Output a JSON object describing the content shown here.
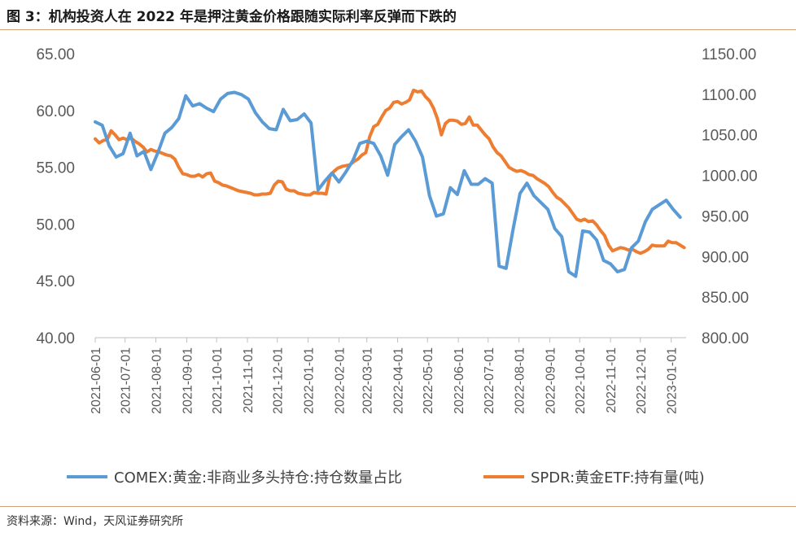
{
  "header": {
    "title": "图 3：机构投资人在 2022 年是押注黄金价格跟随实际利率反弹而下跌的"
  },
  "footer": {
    "source": "资料来源：Wind，天风证券研究所"
  },
  "colors": {
    "series1": "#5b9bd5",
    "series2": "#ed7d31",
    "axis": "#bfbfbf",
    "rule": "#d2a178"
  },
  "chart_data": {
    "type": "line",
    "title": "",
    "grid": false,
    "legend_position": "bottom",
    "x_ticks": [
      "2021-06-01",
      "2021-07-01",
      "2021-08-01",
      "2021-09-01",
      "2021-10-01",
      "2021-11-01",
      "2021-12-01",
      "2022-01-01",
      "2022-02-01",
      "2022-03-01",
      "2022-04-01",
      "2022-05-01",
      "2022-06-01",
      "2022-07-01",
      "2022-08-01",
      "2022-09-01",
      "2022-10-01",
      "2022-11-01",
      "2022-12-01",
      "2023-01-01"
    ],
    "y_left": {
      "min": 40,
      "max": 65,
      "ticks": [
        "40.00",
        "45.00",
        "50.00",
        "55.00",
        "60.00",
        "65.00"
      ]
    },
    "y_right": {
      "min": 800,
      "max": 1150,
      "ticks": [
        "800.00",
        "850.00",
        "900.00",
        "950.00",
        "1000.00",
        "1050.00",
        "1100.00",
        "1150.00"
      ]
    },
    "series": [
      {
        "name": "COMEX:黄金:非商业多头持仓:持仓数量占比",
        "axis": "left",
        "points": [
          [
            "2021-06-01",
            59.0
          ],
          [
            "2021-06-08",
            58.7
          ],
          [
            "2021-06-15",
            56.9
          ],
          [
            "2021-06-22",
            55.9
          ],
          [
            "2021-06-29",
            56.2
          ],
          [
            "2021-07-06",
            58.0
          ],
          [
            "2021-07-13",
            56.0
          ],
          [
            "2021-07-20",
            56.4
          ],
          [
            "2021-07-27",
            54.8
          ],
          [
            "2021-08-03",
            56.3
          ],
          [
            "2021-08-10",
            58.0
          ],
          [
            "2021-08-17",
            58.5
          ],
          [
            "2021-08-24",
            59.3
          ],
          [
            "2021-08-31",
            61.3
          ],
          [
            "2021-09-07",
            60.4
          ],
          [
            "2021-09-14",
            60.6
          ],
          [
            "2021-09-21",
            60.2
          ],
          [
            "2021-09-28",
            59.9
          ],
          [
            "2021-10-05",
            61.0
          ],
          [
            "2021-10-12",
            61.5
          ],
          [
            "2021-10-19",
            61.6
          ],
          [
            "2021-10-26",
            61.4
          ],
          [
            "2021-11-02",
            61.0
          ],
          [
            "2021-11-09",
            59.8
          ],
          [
            "2021-11-16",
            59.0
          ],
          [
            "2021-11-23",
            58.4
          ],
          [
            "2021-11-30",
            58.3
          ],
          [
            "2021-12-07",
            60.1
          ],
          [
            "2021-12-14",
            59.1
          ],
          [
            "2021-12-21",
            59.2
          ],
          [
            "2021-12-28",
            59.7
          ],
          [
            "2022-01-04",
            58.9
          ],
          [
            "2022-01-11",
            53.0
          ],
          [
            "2022-01-18",
            53.8
          ],
          [
            "2022-01-25",
            54.5
          ],
          [
            "2022-02-01",
            53.7
          ],
          [
            "2022-02-08",
            54.6
          ],
          [
            "2022-02-15",
            55.6
          ],
          [
            "2022-02-22",
            57.1
          ],
          [
            "2022-03-01",
            57.3
          ],
          [
            "2022-03-08",
            57.1
          ],
          [
            "2022-03-15",
            56.0
          ],
          [
            "2022-03-22",
            54.3
          ],
          [
            "2022-03-29",
            57.0
          ],
          [
            "2022-04-05",
            57.7
          ],
          [
            "2022-04-12",
            58.3
          ],
          [
            "2022-04-19",
            57.3
          ],
          [
            "2022-04-26",
            55.9
          ],
          [
            "2022-05-03",
            52.5
          ],
          [
            "2022-05-10",
            50.7
          ],
          [
            "2022-05-17",
            50.9
          ],
          [
            "2022-05-24",
            53.2
          ],
          [
            "2022-05-31",
            52.6
          ],
          [
            "2022-06-07",
            54.7
          ],
          [
            "2022-06-14",
            53.5
          ],
          [
            "2022-06-21",
            53.5
          ],
          [
            "2022-06-28",
            54.0
          ],
          [
            "2022-07-05",
            53.6
          ],
          [
            "2022-07-12",
            46.3
          ],
          [
            "2022-07-19",
            46.1
          ],
          [
            "2022-07-26",
            49.5
          ],
          [
            "2022-08-02",
            52.7
          ],
          [
            "2022-08-09",
            53.6
          ],
          [
            "2022-08-16",
            52.5
          ],
          [
            "2022-08-23",
            51.9
          ],
          [
            "2022-08-30",
            51.3
          ],
          [
            "2022-09-06",
            49.6
          ],
          [
            "2022-09-13",
            48.9
          ],
          [
            "2022-09-20",
            45.8
          ],
          [
            "2022-09-27",
            45.4
          ],
          [
            "2022-10-04",
            49.4
          ],
          [
            "2022-10-11",
            49.3
          ],
          [
            "2022-10-18",
            48.6
          ],
          [
            "2022-10-25",
            46.8
          ],
          [
            "2022-11-01",
            46.5
          ],
          [
            "2022-11-08",
            45.8
          ],
          [
            "2022-11-15",
            46.0
          ],
          [
            "2022-11-22",
            47.9
          ],
          [
            "2022-11-29",
            48.5
          ],
          [
            "2022-12-06",
            50.2
          ],
          [
            "2022-12-13",
            51.3
          ],
          [
            "2022-12-20",
            51.7
          ],
          [
            "2022-12-27",
            52.1
          ],
          [
            "2023-01-03",
            51.3
          ],
          [
            "2023-01-10",
            50.6
          ]
        ]
      },
      {
        "name": "SPDR:黄金ETF:持有量(吨)",
        "axis": "right",
        "points": [
          [
            "2021-06-01",
            1045
          ],
          [
            "2021-06-05",
            1040
          ],
          [
            "2021-06-09",
            1043
          ],
          [
            "2021-06-13",
            1044
          ],
          [
            "2021-06-17",
            1055
          ],
          [
            "2021-06-21",
            1050
          ],
          [
            "2021-06-25",
            1044
          ],
          [
            "2021-06-29",
            1046
          ],
          [
            "2021-07-03",
            1044
          ],
          [
            "2021-07-07",
            1046
          ],
          [
            "2021-07-11",
            1042
          ],
          [
            "2021-07-15",
            1039
          ],
          [
            "2021-07-19",
            1035
          ],
          [
            "2021-07-23",
            1029
          ],
          [
            "2021-07-27",
            1032
          ],
          [
            "2021-07-31",
            1030
          ],
          [
            "2021-08-04",
            1029
          ],
          [
            "2021-08-08",
            1027
          ],
          [
            "2021-08-12",
            1025
          ],
          [
            "2021-08-16",
            1024
          ],
          [
            "2021-08-20",
            1020
          ],
          [
            "2021-08-24",
            1010
          ],
          [
            "2021-08-28",
            1002
          ],
          [
            "2021-09-01",
            1001
          ],
          [
            "2021-09-05",
            999
          ],
          [
            "2021-09-09",
            999
          ],
          [
            "2021-09-13",
            1001
          ],
          [
            "2021-09-17",
            998
          ],
          [
            "2021-09-21",
            1002
          ],
          [
            "2021-09-25",
            1003
          ],
          [
            "2021-09-29",
            993
          ],
          [
            "2021-10-03",
            991
          ],
          [
            "2021-10-07",
            988
          ],
          [
            "2021-10-11",
            987
          ],
          [
            "2021-10-15",
            985
          ],
          [
            "2021-10-19",
            983
          ],
          [
            "2021-10-23",
            981
          ],
          [
            "2021-10-27",
            980
          ],
          [
            "2021-10-31",
            979
          ],
          [
            "2021-11-04",
            978
          ],
          [
            "2021-11-08",
            976
          ],
          [
            "2021-11-12",
            976
          ],
          [
            "2021-11-16",
            977
          ],
          [
            "2021-11-20",
            977
          ],
          [
            "2021-11-24",
            978
          ],
          [
            "2021-11-28",
            988
          ],
          [
            "2021-12-02",
            993
          ],
          [
            "2021-12-06",
            992
          ],
          [
            "2021-12-10",
            983
          ],
          [
            "2021-12-14",
            981
          ],
          [
            "2021-12-18",
            981
          ],
          [
            "2021-12-22",
            978
          ],
          [
            "2021-12-26",
            977
          ],
          [
            "2021-12-30",
            976
          ],
          [
            "2022-01-03",
            976
          ],
          [
            "2022-01-07",
            979
          ],
          [
            "2022-01-11",
            978
          ],
          [
            "2022-01-15",
            978
          ],
          [
            "2022-01-19",
            977
          ],
          [
            "2022-01-23",
            999
          ],
          [
            "2022-01-27",
            1005
          ],
          [
            "2022-01-31",
            1009
          ],
          [
            "2022-02-04",
            1011
          ],
          [
            "2022-02-08",
            1012
          ],
          [
            "2022-02-12",
            1013
          ],
          [
            "2022-02-16",
            1017
          ],
          [
            "2022-02-20",
            1020
          ],
          [
            "2022-02-24",
            1025
          ],
          [
            "2022-02-28",
            1028
          ],
          [
            "2022-03-04",
            1048
          ],
          [
            "2022-03-08",
            1060
          ],
          [
            "2022-03-12",
            1063
          ],
          [
            "2022-03-16",
            1072
          ],
          [
            "2022-03-20",
            1080
          ],
          [
            "2022-03-24",
            1083
          ],
          [
            "2022-03-28",
            1090
          ],
          [
            "2022-04-01",
            1091
          ],
          [
            "2022-04-05",
            1088
          ],
          [
            "2022-04-09",
            1090
          ],
          [
            "2022-04-13",
            1093
          ],
          [
            "2022-04-17",
            1105
          ],
          [
            "2022-04-21",
            1103
          ],
          [
            "2022-04-25",
            1104
          ],
          [
            "2022-04-29",
            1097
          ],
          [
            "2022-05-03",
            1092
          ],
          [
            "2022-05-07",
            1083
          ],
          [
            "2022-05-11",
            1070
          ],
          [
            "2022-05-15",
            1050
          ],
          [
            "2022-05-19",
            1064
          ],
          [
            "2022-05-23",
            1068
          ],
          [
            "2022-05-27",
            1068
          ],
          [
            "2022-05-31",
            1067
          ],
          [
            "2022-06-04",
            1063
          ],
          [
            "2022-06-08",
            1064
          ],
          [
            "2022-06-12",
            1072
          ],
          [
            "2022-06-16",
            1062
          ],
          [
            "2022-06-20",
            1062
          ],
          [
            "2022-06-24",
            1056
          ],
          [
            "2022-06-28",
            1050
          ],
          [
            "2022-07-02",
            1045
          ],
          [
            "2022-07-06",
            1035
          ],
          [
            "2022-07-10",
            1028
          ],
          [
            "2022-07-14",
            1024
          ],
          [
            "2022-07-18",
            1017
          ],
          [
            "2022-07-22",
            1010
          ],
          [
            "2022-07-26",
            1007
          ],
          [
            "2022-07-30",
            1005
          ],
          [
            "2022-08-03",
            1006
          ],
          [
            "2022-08-07",
            1004
          ],
          [
            "2022-08-11",
            1001
          ],
          [
            "2022-08-15",
            1000
          ],
          [
            "2022-08-19",
            996
          ],
          [
            "2022-08-23",
            993
          ],
          [
            "2022-08-27",
            990
          ],
          [
            "2022-08-31",
            986
          ],
          [
            "2022-09-04",
            979
          ],
          [
            "2022-09-08",
            973
          ],
          [
            "2022-09-12",
            970
          ],
          [
            "2022-09-16",
            965
          ],
          [
            "2022-09-20",
            960
          ],
          [
            "2022-09-24",
            953
          ],
          [
            "2022-09-28",
            946
          ],
          [
            "2022-10-02",
            944
          ],
          [
            "2022-10-06",
            946
          ],
          [
            "2022-10-10",
            943
          ],
          [
            "2022-10-14",
            944
          ],
          [
            "2022-10-18",
            939
          ],
          [
            "2022-10-22",
            932
          ],
          [
            "2022-10-26",
            926
          ],
          [
            "2022-10-30",
            914
          ],
          [
            "2022-11-03",
            907
          ],
          [
            "2022-11-07",
            909
          ],
          [
            "2022-11-11",
            911
          ],
          [
            "2022-11-15",
            910
          ],
          [
            "2022-11-19",
            908
          ],
          [
            "2022-11-23",
            909
          ],
          [
            "2022-11-27",
            906
          ],
          [
            "2022-12-01",
            904
          ],
          [
            "2022-12-05",
            906
          ],
          [
            "2022-12-09",
            909
          ],
          [
            "2022-12-13",
            914
          ],
          [
            "2022-12-17",
            913
          ],
          [
            "2022-12-21",
            913
          ],
          [
            "2022-12-25",
            913
          ],
          [
            "2022-12-29",
            919
          ],
          [
            "2023-01-02",
            917
          ],
          [
            "2023-01-06",
            917
          ],
          [
            "2023-01-10",
            914
          ],
          [
            "2023-01-14",
            911
          ]
        ]
      }
    ]
  }
}
